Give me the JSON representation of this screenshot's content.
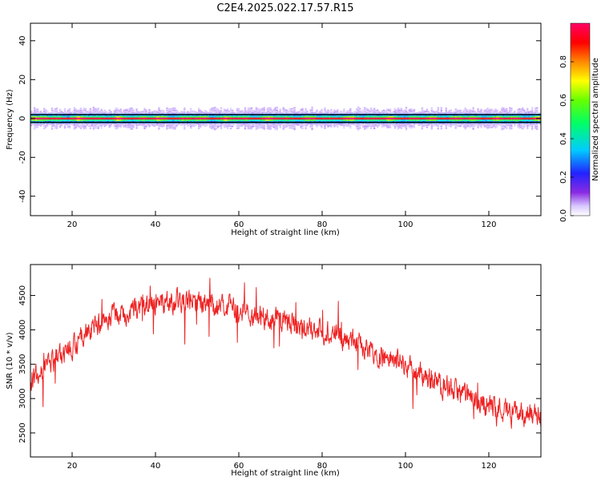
{
  "title": "C2E4.2025.022.17.57.R15",
  "chart_data": [
    {
      "type": "heatmap",
      "xlabel": "Height of straight line (km)",
      "ylabel": "Frequency (Hz)",
      "xlim": [
        10,
        132.5
      ],
      "ylim": [
        -50,
        49
      ],
      "xticks": [
        20,
        40,
        60,
        80,
        100,
        120
      ],
      "yticks": [
        -40,
        -20,
        0,
        20,
        40
      ],
      "grid": false,
      "colorbar": {
        "label": "Normalized spectral amplitude",
        "range": [
          0.0,
          1.0
        ],
        "ticks": [
          "0.0",
          "0.2",
          "0.4",
          "0.6",
          "0.8"
        ],
        "colormap": "rainbow (white/violet low → blue → cyan → green → yellow → red → magenta high)"
      },
      "band": {
        "center_frequency": 0,
        "half_width_hz": 2.5,
        "faint_halo_half_width_hz": 5,
        "peak_amplitude": 1.0,
        "description": "narrow high-amplitude band centred at 0 Hz across all heights"
      },
      "reference_lines_hz": [
        2,
        -2
      ]
    },
    {
      "type": "line",
      "xlabel": "Height of straight line (km)",
      "ylabel": "SNR (10 * v/v)",
      "xlim": [
        10,
        132.5
      ],
      "ylim": [
        2150,
        4950
      ],
      "xticks": [
        20,
        40,
        60,
        80,
        100,
        120
      ],
      "yticks": [
        2500,
        3000,
        3500,
        4000,
        4500
      ],
      "grid": false,
      "series_color": "#ee2222",
      "trend": {
        "x": [
          10,
          14,
          18,
          22,
          26,
          30,
          35,
          40,
          45,
          50,
          55,
          60,
          65,
          70,
          75,
          80,
          85,
          90,
          95,
          100,
          105,
          110,
          115,
          120,
          125,
          130,
          132.5
        ],
        "y": [
          3300,
          3450,
          3650,
          3850,
          4050,
          4200,
          4300,
          4380,
          4420,
          4400,
          4350,
          4280,
          4200,
          4120,
          4050,
          3980,
          3880,
          3760,
          3620,
          3480,
          3320,
          3160,
          3020,
          2900,
          2820,
          2750,
          2720
        ]
      },
      "noise_amplitude": 320
    }
  ]
}
